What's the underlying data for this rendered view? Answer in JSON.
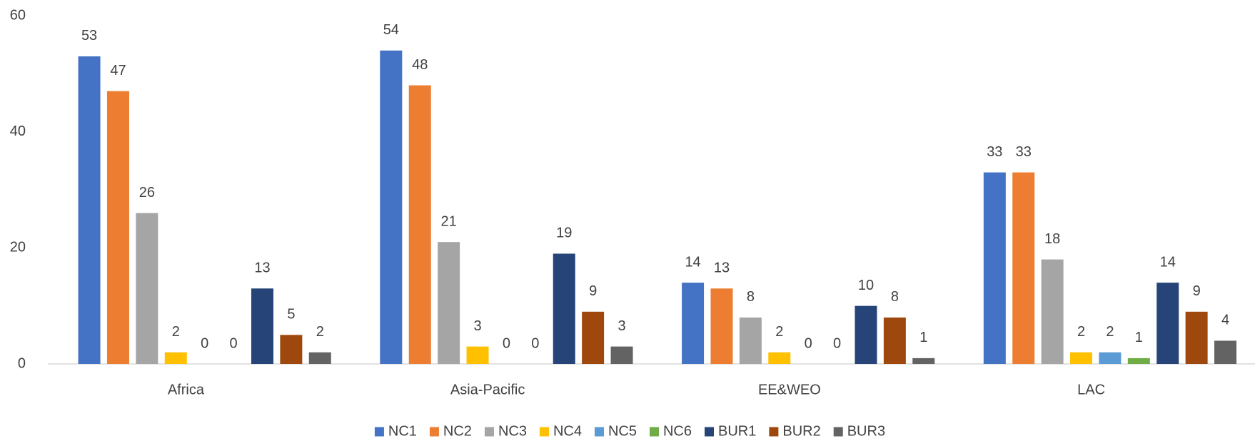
{
  "chart_data": {
    "type": "bar",
    "categories": [
      "Africa",
      "Asia-Pacific",
      "EE&WEO",
      "LAC"
    ],
    "series": [
      {
        "name": "NC1",
        "color": "#4472c4",
        "values": [
          53,
          54,
          14,
          33
        ]
      },
      {
        "name": "NC2",
        "color": "#ed7d31",
        "values": [
          47,
          48,
          13,
          33
        ]
      },
      {
        "name": "NC3",
        "color": "#a5a5a5",
        "values": [
          26,
          21,
          8,
          18
        ]
      },
      {
        "name": "NC4",
        "color": "#ffc000",
        "values": [
          2,
          3,
          2,
          2
        ]
      },
      {
        "name": "NC5",
        "color": "#5b9bd5",
        "values": [
          0,
          0,
          0,
          2
        ]
      },
      {
        "name": "NC6",
        "color": "#70ad47",
        "values": [
          0,
          0,
          0,
          1
        ]
      },
      {
        "name": "BUR1",
        "color": "#264478",
        "values": [
          13,
          19,
          10,
          14
        ]
      },
      {
        "name": "BUR2",
        "color": "#9e480e",
        "values": [
          5,
          9,
          8,
          9
        ]
      },
      {
        "name": "BUR3",
        "color": "#636363",
        "values": [
          2,
          3,
          1,
          4
        ]
      }
    ],
    "ylim": [
      0,
      60
    ],
    "yticks": [
      0,
      20,
      40,
      60
    ],
    "grid": false,
    "legend": "bottom"
  }
}
